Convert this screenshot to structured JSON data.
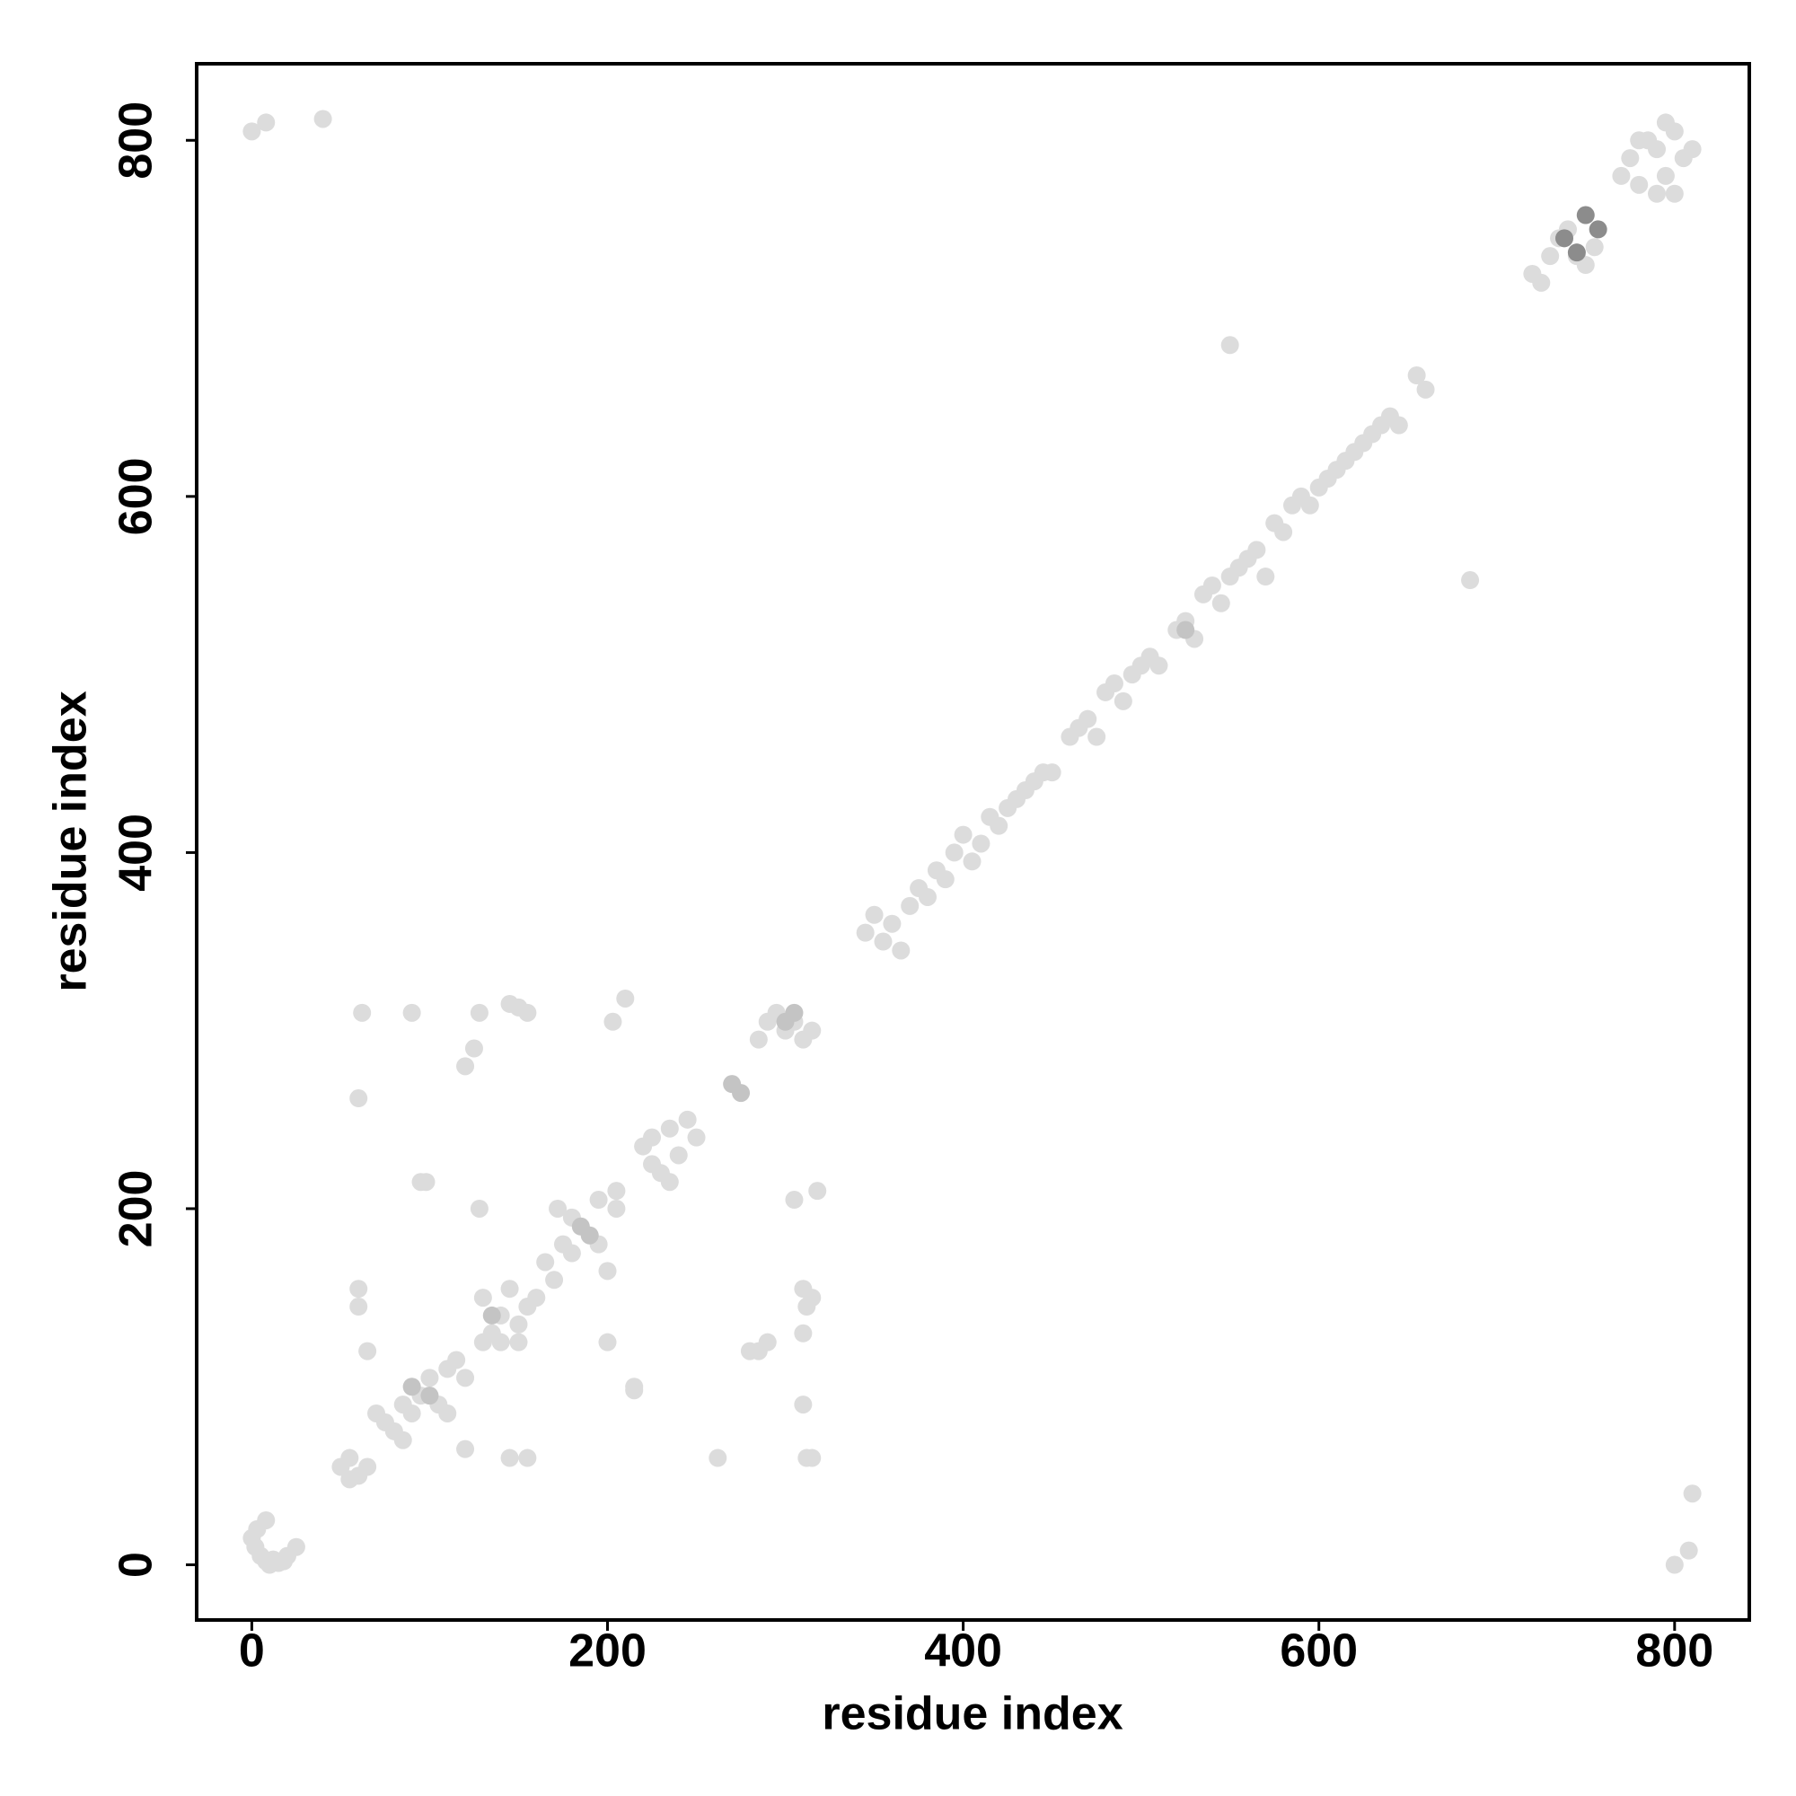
{
  "chart_data": {
    "type": "scatter",
    "x_label": "residue index",
    "y_label": "residue index",
    "xlim": [
      -31,
      842
    ],
    "ylim": [
      -31,
      843
    ],
    "xticks": [
      0,
      200,
      400,
      600,
      800
    ],
    "yticks": [
      0,
      200,
      400,
      600,
      800
    ],
    "series": [
      {
        "color": "#dcdcdc",
        "x": [
          0,
          2,
          5,
          8,
          10,
          12,
          15,
          18,
          20,
          25,
          8,
          3,
          0,
          8,
          40,
          800,
          808,
          810,
          50,
          55,
          60,
          65,
          55,
          70,
          75,
          80,
          85,
          85,
          95,
          100,
          105,
          110,
          115,
          120,
          90,
          110,
          60,
          60,
          62,
          60,
          65,
          90,
          95,
          98,
          120,
          125,
          128,
          128,
          120,
          145,
          155,
          130,
          135,
          140,
          145,
          150,
          150,
          155,
          160,
          140,
          130,
          145,
          150,
          155,
          165,
          170,
          172,
          175,
          180,
          195,
          200,
          180,
          195,
          200,
          205,
          205,
          203,
          210,
          215,
          215,
          220,
          225,
          230,
          235,
          240,
          245,
          250,
          225,
          235,
          262,
          280,
          285,
          290,
          285,
          290,
          295,
          300,
          305,
          310,
          315,
          305,
          310,
          312,
          315,
          310,
          310,
          312,
          315,
          318,
          345,
          350,
          355,
          360,
          365,
          370,
          375,
          380,
          385,
          390,
          395,
          400,
          405,
          410,
          415,
          420,
          425,
          430,
          435,
          440,
          445,
          450,
          460,
          465,
          470,
          475,
          480,
          485,
          490,
          495,
          500,
          505,
          510,
          520,
          525,
          530,
          535,
          540,
          545,
          550,
          555,
          560,
          565,
          570,
          575,
          580,
          585,
          590,
          595,
          600,
          605,
          610,
          615,
          620,
          625,
          630,
          635,
          640,
          645,
          655,
          660,
          550,
          685,
          720,
          725,
          730,
          735,
          740,
          745,
          750,
          755,
          770,
          775,
          780,
          785,
          790,
          795,
          800,
          805,
          810,
          790,
          800,
          780,
          795
        ],
        "values": [
          15,
          10,
          5,
          2,
          0,
          3,
          1,
          2,
          5,
          10,
          25,
          20,
          805,
          810,
          812,
          0,
          8,
          40,
          55,
          60,
          50,
          55,
          48,
          85,
          80,
          75,
          70,
          90,
          95,
          105,
          90,
          110,
          115,
          105,
          85,
          85,
          155,
          145,
          310,
          262,
          120,
          310,
          215,
          215,
          280,
          290,
          310,
          200,
          65,
          60,
          60,
          150,
          130,
          140,
          155,
          135,
          125,
          145,
          150,
          125,
          125,
          315,
          313,
          310,
          170,
          160,
          200,
          180,
          175,
          180,
          165,
          195,
          205,
          125,
          200,
          210,
          305,
          318,
          100,
          98,
          235,
          225,
          220,
          245,
          230,
          250,
          240,
          240,
          215,
          60,
          120,
          120,
          125,
          295,
          305,
          310,
          300,
          305,
          295,
          300,
          205,
          155,
          145,
          150,
          130,
          90,
          60,
          60,
          210,
          355,
          365,
          350,
          360,
          345,
          370,
          380,
          375,
          390,
          385,
          400,
          410,
          395,
          405,
          420,
          415,
          425,
          430,
          435,
          440,
          445,
          445,
          465,
          470,
          475,
          465,
          490,
          495,
          485,
          500,
          505,
          510,
          505,
          525,
          530,
          520,
          545,
          550,
          540,
          555,
          560,
          565,
          570,
          555,
          585,
          580,
          595,
          600,
          595,
          605,
          610,
          615,
          620,
          625,
          630,
          635,
          640,
          645,
          640,
          668,
          660,
          685,
          553,
          725,
          720,
          735,
          745,
          750,
          735,
          730,
          740,
          780,
          790,
          775,
          800,
          795,
          780,
          805,
          790,
          795,
          770,
          770,
          800,
          810
        ]
      },
      {
        "color": "#c4c4c4",
        "x": [
          90,
          100,
          135,
          185,
          190,
          270,
          275,
          300,
          305,
          525
        ],
        "values": [
          100,
          95,
          140,
          190,
          185,
          270,
          265,
          305,
          310,
          525
        ]
      },
      {
        "color": "#8c8c8c",
        "x": [
          738,
          750,
          745,
          757
        ],
        "values": [
          745,
          758,
          737,
          750
        ]
      }
    ]
  }
}
